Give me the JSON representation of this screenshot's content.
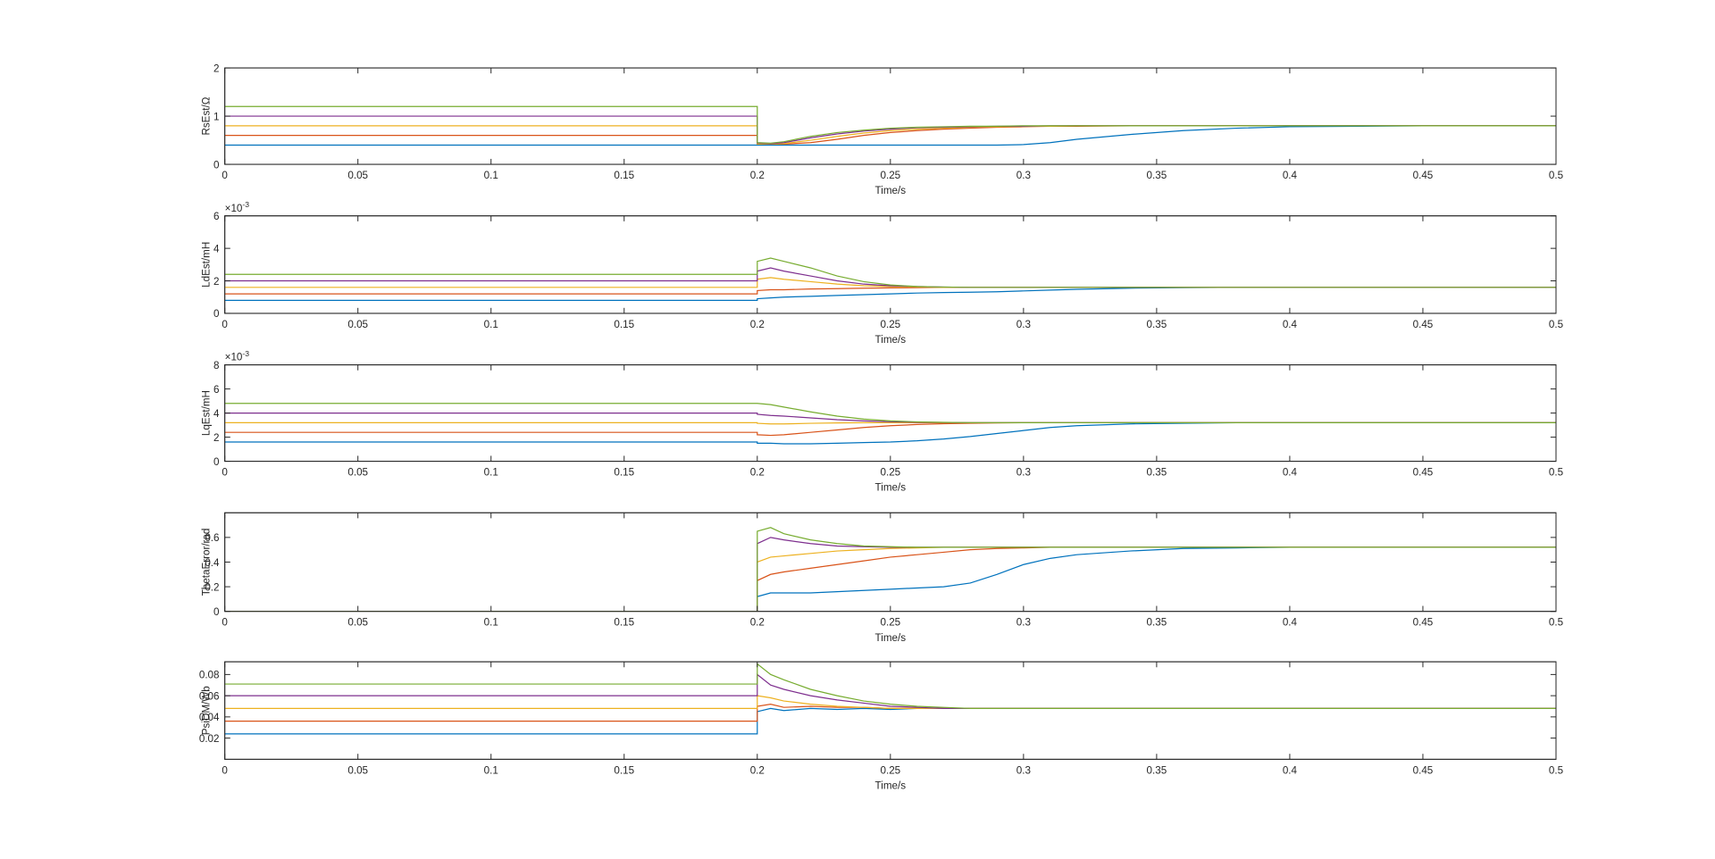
{
  "chart_data": [
    {
      "type": "line",
      "ylabel": "RsEst/Ω",
      "xlabel": "Time/s",
      "x": [
        0,
        0.2,
        0.2,
        0.205,
        0.21,
        0.22,
        0.23,
        0.24,
        0.25,
        0.26,
        0.27,
        0.28,
        0.29,
        0.3,
        0.31,
        0.32,
        0.34,
        0.36,
        0.38,
        0.4,
        0.45,
        0.5
      ],
      "xlim": [
        0,
        0.5
      ],
      "xticks": [
        0,
        0.05,
        0.1,
        0.15,
        0.2,
        0.25,
        0.3,
        0.35,
        0.4,
        0.45,
        0.5
      ],
      "ylim": [
        0,
        2
      ],
      "yticks": [
        0,
        1,
        2
      ],
      "series": [
        {
          "color": "#0072BD",
          "values": [
            0.4,
            0.4,
            0.4,
            0.4,
            0.4,
            0.4,
            0.4,
            0.4,
            0.4,
            0.4,
            0.4,
            0.4,
            0.4,
            0.41,
            0.45,
            0.52,
            0.62,
            0.7,
            0.75,
            0.78,
            0.8,
            0.8
          ]
        },
        {
          "color": "#D95319",
          "values": [
            0.6,
            0.6,
            0.42,
            0.42,
            0.42,
            0.45,
            0.52,
            0.6,
            0.66,
            0.7,
            0.73,
            0.75,
            0.77,
            0.78,
            0.79,
            0.79,
            0.8,
            0.8,
            0.8,
            0.8,
            0.8,
            0.8
          ]
        },
        {
          "color": "#EDB120",
          "values": [
            0.8,
            0.8,
            0.42,
            0.42,
            0.43,
            0.5,
            0.58,
            0.65,
            0.7,
            0.73,
            0.75,
            0.77,
            0.78,
            0.79,
            0.79,
            0.8,
            0.8,
            0.8,
            0.8,
            0.8,
            0.8,
            0.8
          ]
        },
        {
          "color": "#7E2F8E",
          "values": [
            1.0,
            1.0,
            0.44,
            0.43,
            0.45,
            0.55,
            0.63,
            0.69,
            0.73,
            0.76,
            0.77,
            0.78,
            0.79,
            0.79,
            0.8,
            0.8,
            0.8,
            0.8,
            0.8,
            0.8,
            0.8,
            0.8
          ]
        },
        {
          "color": "#77AC30",
          "values": [
            1.2,
            1.2,
            0.45,
            0.44,
            0.47,
            0.58,
            0.66,
            0.71,
            0.75,
            0.77,
            0.78,
            0.79,
            0.79,
            0.8,
            0.8,
            0.8,
            0.8,
            0.8,
            0.8,
            0.8,
            0.8,
            0.8
          ]
        }
      ]
    },
    {
      "type": "line",
      "ylabel": "LdEst/mH",
      "xlabel": "Time/s",
      "y_exponent": {
        "base": "×10",
        "power": "-3"
      },
      "x": [
        0,
        0.2,
        0.2,
        0.205,
        0.21,
        0.22,
        0.23,
        0.24,
        0.25,
        0.26,
        0.27,
        0.28,
        0.29,
        0.3,
        0.31,
        0.32,
        0.34,
        0.36,
        0.38,
        0.4,
        0.45,
        0.5
      ],
      "xlim": [
        0,
        0.5
      ],
      "xticks": [
        0,
        0.05,
        0.1,
        0.15,
        0.2,
        0.25,
        0.3,
        0.35,
        0.4,
        0.45,
        0.5
      ],
      "ylim": [
        0,
        6
      ],
      "yticks": [
        0,
        2,
        4,
        6
      ],
      "series": [
        {
          "color": "#0072BD",
          "values": [
            0.8,
            0.8,
            0.9,
            0.95,
            1.0,
            1.05,
            1.1,
            1.15,
            1.2,
            1.25,
            1.28,
            1.3,
            1.33,
            1.38,
            1.43,
            1.48,
            1.55,
            1.58,
            1.6,
            1.6,
            1.6,
            1.6
          ]
        },
        {
          "color": "#D95319",
          "values": [
            1.2,
            1.2,
            1.4,
            1.45,
            1.45,
            1.5,
            1.52,
            1.55,
            1.57,
            1.58,
            1.6,
            1.6,
            1.6,
            1.6,
            1.6,
            1.6,
            1.6,
            1.6,
            1.6,
            1.6,
            1.6,
            1.6
          ]
        },
        {
          "color": "#EDB120",
          "values": [
            1.6,
            1.6,
            2.1,
            2.2,
            2.1,
            1.95,
            1.8,
            1.7,
            1.65,
            1.62,
            1.6,
            1.6,
            1.6,
            1.6,
            1.6,
            1.6,
            1.6,
            1.6,
            1.6,
            1.6,
            1.6,
            1.6
          ]
        },
        {
          "color": "#7E2F8E",
          "values": [
            2.0,
            2.0,
            2.6,
            2.8,
            2.6,
            2.3,
            2.0,
            1.8,
            1.7,
            1.65,
            1.62,
            1.6,
            1.6,
            1.6,
            1.6,
            1.6,
            1.6,
            1.6,
            1.6,
            1.6,
            1.6,
            1.6
          ]
        },
        {
          "color": "#77AC30",
          "values": [
            2.4,
            2.4,
            3.2,
            3.4,
            3.2,
            2.8,
            2.3,
            1.95,
            1.75,
            1.65,
            1.62,
            1.6,
            1.6,
            1.6,
            1.6,
            1.6,
            1.6,
            1.6,
            1.6,
            1.6,
            1.6,
            1.6
          ]
        }
      ]
    },
    {
      "type": "line",
      "ylabel": "LqEst/mH",
      "xlabel": "Time/s",
      "y_exponent": {
        "base": "×10",
        "power": "-3"
      },
      "x": [
        0,
        0.2,
        0.2,
        0.205,
        0.21,
        0.22,
        0.23,
        0.24,
        0.25,
        0.26,
        0.27,
        0.28,
        0.29,
        0.3,
        0.31,
        0.32,
        0.34,
        0.36,
        0.38,
        0.4,
        0.45,
        0.5
      ],
      "xlim": [
        0,
        0.5
      ],
      "xticks": [
        0,
        0.05,
        0.1,
        0.15,
        0.2,
        0.25,
        0.3,
        0.35,
        0.4,
        0.45,
        0.5
      ],
      "ylim": [
        0,
        8
      ],
      "yticks": [
        0,
        2,
        4,
        6,
        8
      ],
      "series": [
        {
          "color": "#0072BD",
          "values": [
            1.6,
            1.6,
            1.5,
            1.5,
            1.45,
            1.45,
            1.5,
            1.55,
            1.6,
            1.7,
            1.85,
            2.05,
            2.3,
            2.55,
            2.8,
            2.95,
            3.1,
            3.15,
            3.2,
            3.2,
            3.2,
            3.2
          ]
        },
        {
          "color": "#D95319",
          "values": [
            2.4,
            2.4,
            2.2,
            2.15,
            2.2,
            2.4,
            2.6,
            2.8,
            2.95,
            3.05,
            3.12,
            3.15,
            3.18,
            3.2,
            3.2,
            3.2,
            3.2,
            3.2,
            3.2,
            3.2,
            3.2,
            3.2
          ]
        },
        {
          "color": "#EDB120",
          "values": [
            3.2,
            3.2,
            3.15,
            3.1,
            3.1,
            3.15,
            3.18,
            3.2,
            3.2,
            3.2,
            3.2,
            3.2,
            3.2,
            3.2,
            3.2,
            3.2,
            3.2,
            3.2,
            3.2,
            3.2,
            3.2,
            3.2
          ]
        },
        {
          "color": "#7E2F8E",
          "values": [
            4.0,
            4.0,
            3.9,
            3.8,
            3.75,
            3.6,
            3.45,
            3.35,
            3.28,
            3.24,
            3.22,
            3.2,
            3.2,
            3.2,
            3.2,
            3.2,
            3.2,
            3.2,
            3.2,
            3.2,
            3.2,
            3.2
          ]
        },
        {
          "color": "#77AC30",
          "values": [
            4.8,
            4.8,
            4.8,
            4.7,
            4.5,
            4.1,
            3.75,
            3.5,
            3.35,
            3.27,
            3.23,
            3.2,
            3.2,
            3.2,
            3.2,
            3.2,
            3.2,
            3.2,
            3.2,
            3.2,
            3.2,
            3.2
          ]
        }
      ]
    },
    {
      "type": "line",
      "ylabel": "ThetaError/rad",
      "xlabel": "Time/s",
      "x": [
        0,
        0.2,
        0.2,
        0.205,
        0.21,
        0.22,
        0.23,
        0.24,
        0.25,
        0.26,
        0.27,
        0.28,
        0.29,
        0.3,
        0.31,
        0.32,
        0.34,
        0.36,
        0.38,
        0.4,
        0.45,
        0.5
      ],
      "xlim": [
        0,
        0.5
      ],
      "xticks": [
        0,
        0.05,
        0.1,
        0.15,
        0.2,
        0.25,
        0.3,
        0.35,
        0.4,
        0.45,
        0.5
      ],
      "ylim": [
        0,
        0.8
      ],
      "yticks": [
        0,
        0.2,
        0.4,
        0.6
      ],
      "series": [
        {
          "color": "#0072BD",
          "values": [
            0,
            0,
            0.12,
            0.15,
            0.15,
            0.15,
            0.16,
            0.17,
            0.18,
            0.19,
            0.2,
            0.23,
            0.3,
            0.38,
            0.43,
            0.46,
            0.49,
            0.51,
            0.515,
            0.52,
            0.52,
            0.52
          ]
        },
        {
          "color": "#D95319",
          "values": [
            0,
            0,
            0.25,
            0.3,
            0.32,
            0.35,
            0.38,
            0.41,
            0.44,
            0.46,
            0.48,
            0.5,
            0.51,
            0.515,
            0.52,
            0.52,
            0.52,
            0.52,
            0.52,
            0.52,
            0.52,
            0.52
          ]
        },
        {
          "color": "#EDB120",
          "values": [
            0,
            0,
            0.4,
            0.44,
            0.45,
            0.47,
            0.49,
            0.5,
            0.51,
            0.515,
            0.52,
            0.52,
            0.52,
            0.52,
            0.52,
            0.52,
            0.52,
            0.52,
            0.52,
            0.52,
            0.52,
            0.52
          ]
        },
        {
          "color": "#7E2F8E",
          "values": [
            0,
            0,
            0.55,
            0.6,
            0.58,
            0.55,
            0.53,
            0.525,
            0.52,
            0.52,
            0.52,
            0.52,
            0.52,
            0.52,
            0.52,
            0.52,
            0.52,
            0.52,
            0.52,
            0.52,
            0.52,
            0.52
          ]
        },
        {
          "color": "#77AC30",
          "values": [
            0,
            0,
            0.65,
            0.68,
            0.63,
            0.58,
            0.55,
            0.53,
            0.525,
            0.52,
            0.52,
            0.52,
            0.52,
            0.52,
            0.52,
            0.52,
            0.52,
            0.52,
            0.52,
            0.52,
            0.52,
            0.52
          ]
        }
      ]
    },
    {
      "type": "line",
      "ylabel": "PsiDM/Wb",
      "xlabel": "Time/s",
      "x": [
        0,
        0.2,
        0.2,
        0.205,
        0.21,
        0.22,
        0.23,
        0.24,
        0.25,
        0.26,
        0.27,
        0.28,
        0.29,
        0.3,
        0.31,
        0.32,
        0.34,
        0.36,
        0.38,
        0.4,
        0.45,
        0.5
      ],
      "xlim": [
        0,
        0.5
      ],
      "xticks": [
        0,
        0.05,
        0.1,
        0.15,
        0.2,
        0.25,
        0.3,
        0.35,
        0.4,
        0.45,
        0.5
      ],
      "ylim": [
        0,
        0.092
      ],
      "yticks": [
        0.02,
        0.04,
        0.06,
        0.08
      ],
      "series": [
        {
          "color": "#0072BD",
          "values": [
            0.024,
            0.024,
            0.045,
            0.048,
            0.046,
            0.048,
            0.047,
            0.048,
            0.047,
            0.048,
            0.048,
            0.048,
            0.048,
            0.048,
            0.048,
            0.048,
            0.048,
            0.048,
            0.048,
            0.048,
            0.048,
            0.048
          ]
        },
        {
          "color": "#D95319",
          "values": [
            0.036,
            0.036,
            0.05,
            0.052,
            0.049,
            0.05,
            0.049,
            0.049,
            0.048,
            0.048,
            0.048,
            0.048,
            0.048,
            0.048,
            0.048,
            0.048,
            0.048,
            0.048,
            0.048,
            0.048,
            0.048,
            0.048
          ]
        },
        {
          "color": "#EDB120",
          "values": [
            0.048,
            0.048,
            0.06,
            0.058,
            0.055,
            0.052,
            0.05,
            0.049,
            0.048,
            0.048,
            0.048,
            0.048,
            0.048,
            0.048,
            0.048,
            0.048,
            0.048,
            0.048,
            0.048,
            0.048,
            0.048,
            0.048
          ]
        },
        {
          "color": "#7E2F8E",
          "values": [
            0.06,
            0.06,
            0.08,
            0.07,
            0.066,
            0.06,
            0.056,
            0.053,
            0.05,
            0.049,
            0.048,
            0.048,
            0.048,
            0.048,
            0.048,
            0.048,
            0.048,
            0.048,
            0.048,
            0.048,
            0.048,
            0.048
          ]
        },
        {
          "color": "#77AC30",
          "values": [
            0.071,
            0.071,
            0.09,
            0.08,
            0.075,
            0.066,
            0.06,
            0.055,
            0.052,
            0.05,
            0.049,
            0.048,
            0.048,
            0.048,
            0.048,
            0.048,
            0.048,
            0.048,
            0.048,
            0.048,
            0.048,
            0.048
          ]
        }
      ]
    }
  ]
}
